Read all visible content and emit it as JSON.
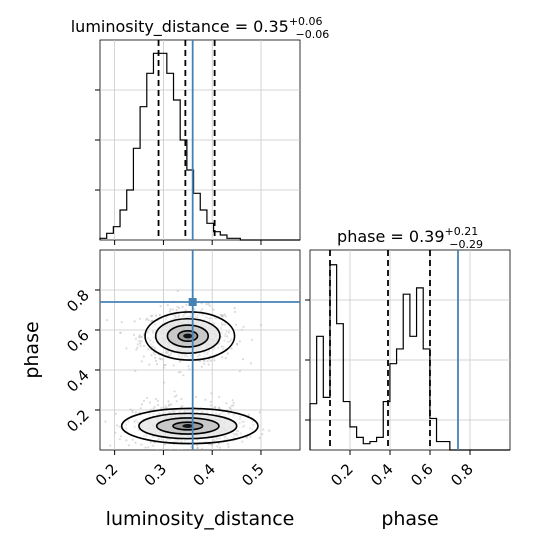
{
  "chart_data": {
    "type": "corner",
    "parameters": [
      {
        "name": "luminosity_distance",
        "title_text": "luminosity_distance = 0.35",
        "title_plus": "+0.06",
        "title_minus": "−0.06",
        "median": 0.35,
        "plus": 0.06,
        "minus": 0.06,
        "quantiles": [
          0.29,
          0.345,
          0.405
        ],
        "truth": 0.36,
        "range": [
          0.17,
          0.58
        ],
        "ticks": [
          "0.2",
          "0.3",
          "0.4",
          "0.5"
        ],
        "tick_values": [
          0.2,
          0.3,
          0.4,
          0.5
        ],
        "hist": {
          "bin_start": 0.17,
          "bin_width": 0.0137,
          "counts": [
            1,
            4,
            8,
            18,
            30,
            55,
            80,
            100,
            112,
            112,
            100,
            84,
            60,
            42,
            28,
            18,
            10,
            5,
            3,
            1,
            1,
            0,
            0,
            0,
            0,
            0,
            0,
            0,
            0,
            0
          ],
          "ylim": [
            0,
            120
          ]
        }
      },
      {
        "name": "phase",
        "title_text": "phase = 0.39",
        "title_plus": "+0.21",
        "title_minus": "−0.29",
        "median": 0.39,
        "plus": 0.21,
        "minus": 0.29,
        "quantiles": [
          0.1,
          0.39,
          0.6
        ],
        "truth": 0.74,
        "range": [
          0.0,
          1.0
        ],
        "ticks": [
          "0.2",
          "0.4",
          "0.6",
          "0.8"
        ],
        "tick_values": [
          0.2,
          0.4,
          0.6,
          0.8
        ],
        "hist": {
          "bin_start": 0.0,
          "bin_width": 0.0333,
          "counts": [
            22,
            54,
            25,
            88,
            60,
            23,
            11,
            6,
            3,
            4,
            6,
            23,
            41,
            48,
            74,
            54,
            77,
            48,
            15,
            4,
            4,
            0,
            0,
            0,
            0,
            0,
            0,
            0,
            0,
            0
          ],
          "ylim": [
            0,
            95
          ]
        }
      }
    ],
    "scatter_2d": {
      "x": "luminosity_distance",
      "y": "phase",
      "modes": [
        {
          "x": 0.35,
          "y": 0.57,
          "sx": 0.038,
          "sy": 0.055
        },
        {
          "x": 0.35,
          "y": 0.12,
          "sx": 0.045,
          "sy": 0.045
        }
      ],
      "contour_levels": 3
    },
    "xlabels": [
      "luminosity_distance",
      "phase"
    ],
    "ylabels": [
      "phase"
    ],
    "truth_color": "#4682b4",
    "line_color": "#000000",
    "grid": true
  }
}
